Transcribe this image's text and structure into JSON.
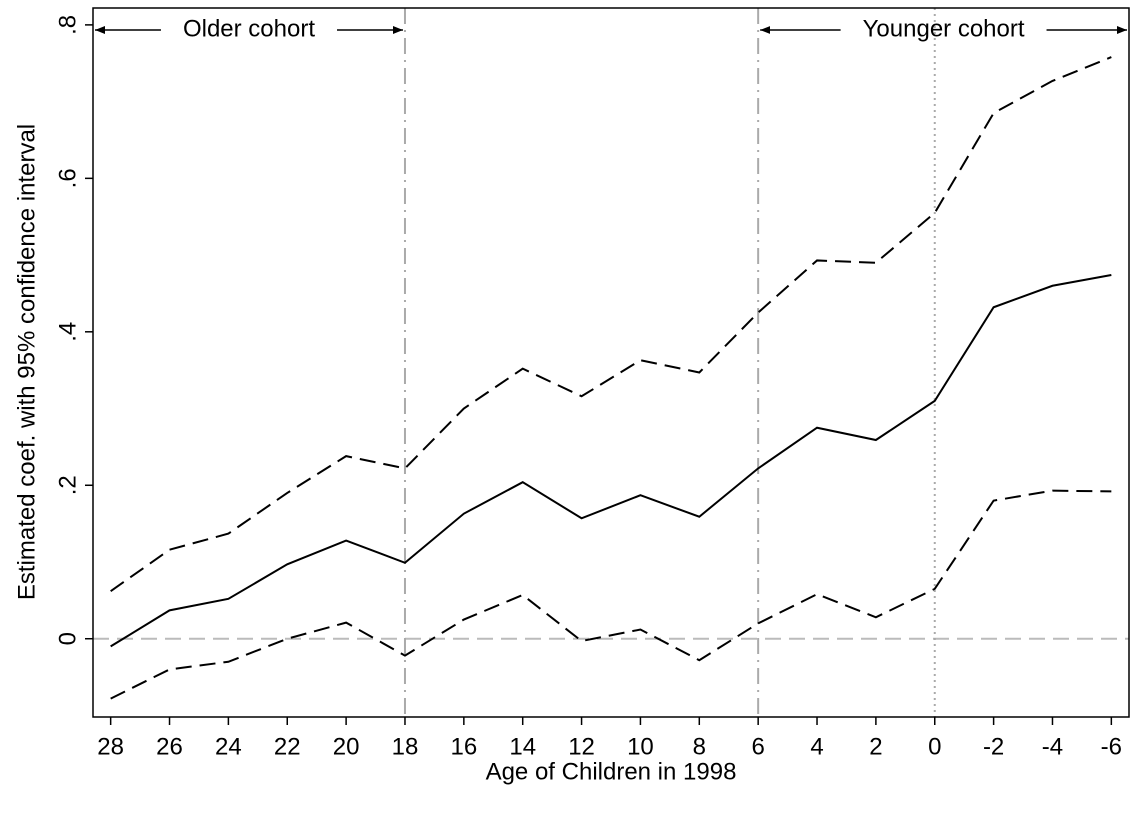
{
  "chart_data": {
    "type": "line",
    "x_label": "Age of Children in 1998",
    "y_label": "Estimated coef. with 95% confidence interval",
    "x": [
      28,
      26,
      24,
      22,
      20,
      18,
      16,
      14,
      12,
      10,
      8,
      6,
      4,
      2,
      0,
      -2,
      -4,
      -6
    ],
    "series": [
      {
        "color": "#000000",
        "dash": "dashed",
        "values": [
          0.062,
          0.116,
          0.137,
          0.19,
          0.238,
          0.222,
          0.3,
          0.352,
          0.316,
          0.363,
          0.347,
          0.425,
          0.493,
          0.49,
          0.555,
          0.685,
          0.727,
          0.758
        ]
      },
      {
        "color": "#000000",
        "dash": "solid",
        "values": [
          -0.01,
          0.037,
          0.052,
          0.097,
          0.128,
          0.099,
          0.163,
          0.204,
          0.157,
          0.187,
          0.159,
          0.222,
          0.275,
          0.259,
          0.31,
          0.432,
          0.46,
          0.474
        ]
      },
      {
        "color": "#000000",
        "dash": "dashed",
        "values": [
          -0.078,
          -0.04,
          -0.03,
          0.0,
          0.021,
          -0.022,
          0.025,
          0.057,
          -0.003,
          0.012,
          -0.028,
          0.02,
          0.058,
          0.028,
          0.065,
          0.18,
          0.193,
          0.192
        ]
      }
    ],
    "xlim": [
      28.6,
      -6.6
    ],
    "xticks": [
      28,
      26,
      24,
      22,
      20,
      18,
      16,
      14,
      12,
      10,
      8,
      6,
      4,
      2,
      0,
      -2,
      -4,
      -6
    ],
    "ylim": [
      -0.102,
      0.822
    ],
    "yticks": [
      0,
      {
        "value": 0.2,
        "label": ".2"
      },
      {
        "value": 0.4,
        "label": ".4"
      },
      {
        "value": 0.6,
        "label": ".6"
      },
      {
        "value": 0.8,
        "label": ".8"
      }
    ],
    "hlines": [
      {
        "value": 0,
        "style": "dashed"
      }
    ],
    "vlines": [
      {
        "value": 18,
        "style": "dashdot"
      },
      {
        "value": 6,
        "style": "dashdot"
      },
      {
        "value": 0,
        "style": "dotted"
      }
    ],
    "annotations": [
      "Older cohort",
      "Younger cohort"
    ]
  }
}
